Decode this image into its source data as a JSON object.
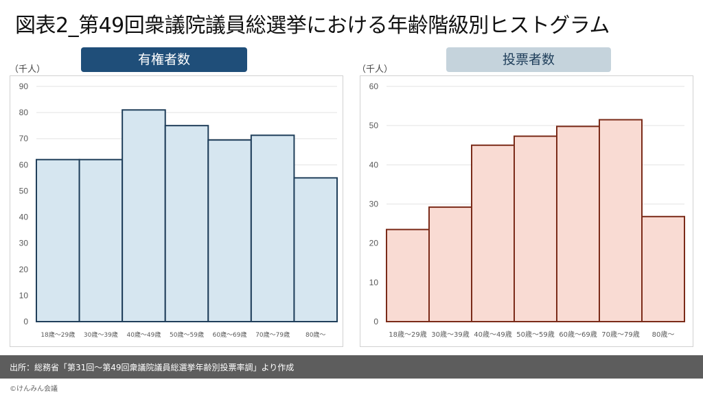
{
  "title": "図表2_第49回衆議院議員総選挙における年齢階級別ヒストグラム",
  "footer_source": "出所：総務省「第31回～第49回衆議院議員総選挙年齢別投票率調」より作成",
  "copyright": "©けんみん会議",
  "colors": {
    "left_fill": "#d6e6f0",
    "left_stroke": "#1f3e5a",
    "right_fill": "#f9dbd3",
    "right_stroke": "#7a2a18",
    "grid": "#e3e3e3",
    "tick": "#595959"
  },
  "chart_data": [
    {
      "type": "bar",
      "title": "有権者数",
      "unit": "（千人）",
      "categories": [
        "18歳～29歳",
        "30歳～39歳",
        "40歳～49歳",
        "50歳～59歳",
        "60歳～69歳",
        "70歳～79歳",
        "80歳～"
      ],
      "values": [
        62,
        62,
        81,
        75,
        69.5,
        71.3,
        55
      ],
      "ylim": [
        0,
        90
      ],
      "yticks": [
        0,
        10,
        20,
        30,
        40,
        50,
        60,
        70,
        80,
        90
      ],
      "grid": true
    },
    {
      "type": "bar",
      "title": "投票者数",
      "unit": "（千人）",
      "categories": [
        "18歳～29歳",
        "30歳～39歳",
        "40歳～49歳",
        "50歳～59歳",
        "60歳～69歳",
        "70歳～79歳",
        "80歳～"
      ],
      "values": [
        23.5,
        29.2,
        45,
        47.3,
        49.8,
        51.5,
        26.8
      ],
      "ylim": [
        0,
        60
      ],
      "yticks": [
        0,
        10,
        20,
        30,
        40,
        50,
        60
      ],
      "grid": true
    }
  ]
}
